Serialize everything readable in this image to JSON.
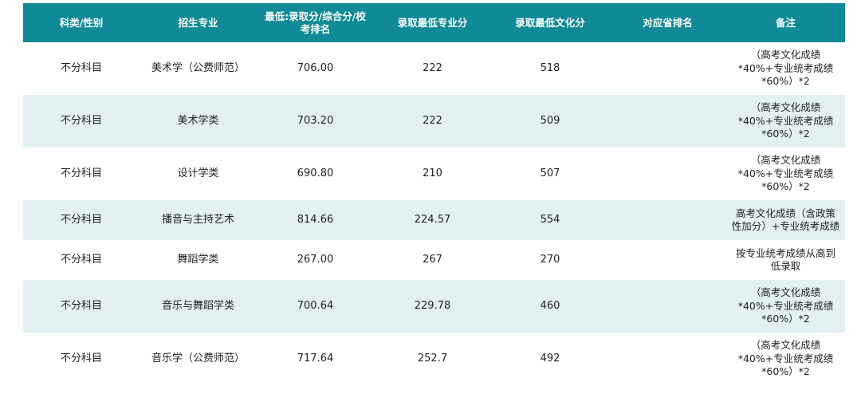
{
  "table": {
    "headers": [
      "科类/性别",
      "招生专业",
      "最低:录取分/综合分/校考排名",
      "录取最低专业分",
      "录取最低文化分",
      "对应省排名",
      "备注"
    ],
    "rows": [
      {
        "category": "不分科目",
        "major": "美术学（公费师范）",
        "min_score": "706.00",
        "min_major_score": "222",
        "min_culture_score": "518",
        "province_rank": "",
        "note": "（高考文化成绩*40%+专业统考成绩*60%）*2"
      },
      {
        "category": "不分科目",
        "major": "美术学类",
        "min_score": "703.20",
        "min_major_score": "222",
        "min_culture_score": "509",
        "province_rank": "",
        "note": "（高考文化成绩*40%+专业统考成绩*60%）*2"
      },
      {
        "category": "不分科目",
        "major": "设计学类",
        "min_score": "690.80",
        "min_major_score": "210",
        "min_culture_score": "507",
        "province_rank": "",
        "note": "（高考文化成绩*40%+专业统考成绩*60%）*2"
      },
      {
        "category": "不分科目",
        "major": "播音与主持艺术",
        "min_score": "814.66",
        "min_major_score": "224.57",
        "min_culture_score": "554",
        "province_rank": "",
        "note": "高考文化成绩（含政策性加分）+专业统考成绩"
      },
      {
        "category": "不分科目",
        "major": "舞蹈学类",
        "min_score": "267.00",
        "min_major_score": "267",
        "min_culture_score": "270",
        "province_rank": "",
        "note": "按专业统考成绩从高到低录取"
      },
      {
        "category": "不分科目",
        "major": "音乐与舞蹈学类",
        "min_score": "700.64",
        "min_major_score": "229.78",
        "min_culture_score": "460",
        "province_rank": "",
        "note": "（高考文化成绩*40%+专业统考成绩*60%）*2"
      },
      {
        "category": "不分科目",
        "major": "音乐学（公费师范）",
        "min_score": "717.64",
        "min_major_score": "252.7",
        "min_culture_score": "492",
        "province_rank": "",
        "note": "（高考文化成绩*40%+专业统考成绩*60%）*2"
      }
    ]
  }
}
